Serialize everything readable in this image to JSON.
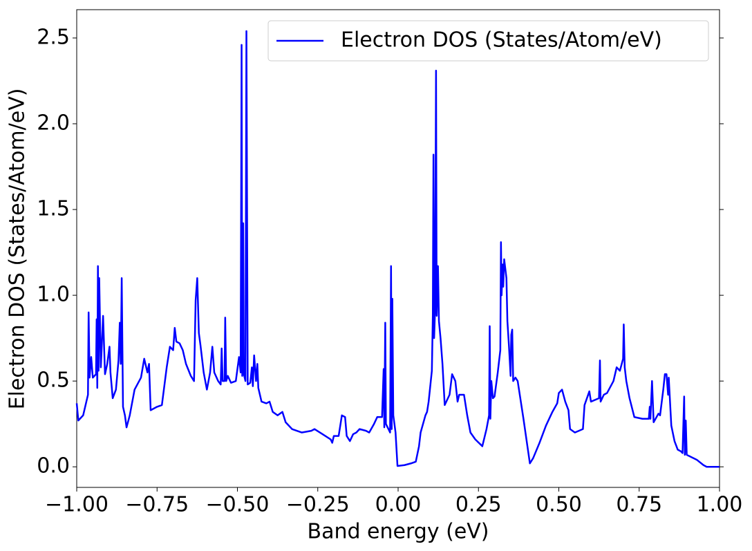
{
  "chart_data": {
    "type": "line",
    "xlabel": "Band energy (eV)",
    "ylabel": "Electron DOS (States/Atom/eV)",
    "legend": "upper right",
    "x": [
      -1.0,
      -0.995,
      -0.98,
      -0.965,
      -0.963,
      -0.96,
      -0.955,
      -0.95,
      -0.94,
      -0.938,
      -0.936,
      -0.934,
      -0.932,
      -0.93,
      -0.925,
      -0.918,
      -0.912,
      -0.905,
      -0.898,
      -0.895,
      -0.888,
      -0.878,
      -0.87,
      -0.866,
      -0.863,
      -0.86,
      -0.856,
      -0.85,
      -0.845,
      -0.835,
      -0.82,
      -0.8,
      -0.79,
      -0.78,
      -0.775,
      -0.77,
      -0.75,
      -0.735,
      -0.72,
      -0.71,
      -0.7,
      -0.695,
      -0.69,
      -0.68,
      -0.67,
      -0.66,
      -0.645,
      -0.635,
      -0.63,
      -0.625,
      -0.62,
      -0.615,
      -0.605,
      -0.595,
      -0.585,
      -0.578,
      -0.572,
      -0.56,
      -0.552,
      -0.549,
      -0.546,
      -0.54,
      -0.538,
      -0.535,
      -0.53,
      -0.52,
      -0.505,
      -0.495,
      -0.49,
      -0.487,
      -0.485,
      -0.482,
      -0.48,
      -0.475,
      -0.472,
      -0.468,
      -0.46,
      -0.455,
      -0.452,
      -0.448,
      -0.442,
      -0.438,
      -0.435,
      -0.425,
      -0.41,
      -0.4,
      -0.39,
      -0.375,
      -0.36,
      -0.35,
      -0.33,
      -0.3,
      -0.27,
      -0.26,
      -0.235,
      -0.21,
      -0.205,
      -0.2,
      -0.185,
      -0.175,
      -0.165,
      -0.16,
      -0.15,
      -0.14,
      -0.13,
      -0.12,
      -0.1,
      -0.09,
      -0.075,
      -0.065,
      -0.05,
      -0.045,
      -0.043,
      -0.04,
      -0.038,
      -0.03,
      -0.025,
      -0.022,
      -0.02,
      -0.018,
      -0.015,
      -0.008,
      -0.002,
      0.02,
      0.04,
      0.055,
      0.065,
      0.07,
      0.085,
      0.09,
      0.095,
      0.105,
      0.108,
      0.11,
      0.112,
      0.115,
      0.118,
      0.12,
      0.124,
      0.127,
      0.132,
      0.138,
      0.145,
      0.16,
      0.168,
      0.178,
      0.185,
      0.19,
      0.205,
      0.215,
      0.225,
      0.24,
      0.262,
      0.275,
      0.283,
      0.285,
      0.287,
      0.29,
      0.295,
      0.3,
      0.31,
      0.318,
      0.32,
      0.322,
      0.325,
      0.327,
      0.33,
      0.337,
      0.34,
      0.345,
      0.35,
      0.352,
      0.355,
      0.358,
      0.365,
      0.372,
      0.39,
      0.4,
      0.41,
      0.42,
      0.44,
      0.46,
      0.48,
      0.495,
      0.5,
      0.51,
      0.52,
      0.53,
      0.535,
      0.55,
      0.575,
      0.58,
      0.595,
      0.6,
      0.625,
      0.628,
      0.63,
      0.64,
      0.65,
      0.67,
      0.68,
      0.69,
      0.7,
      0.702,
      0.705,
      0.71,
      0.72,
      0.735,
      0.76,
      0.78,
      0.783,
      0.785,
      0.79,
      0.795,
      0.81,
      0.815,
      0.825,
      0.83,
      0.835,
      0.84,
      0.842,
      0.85,
      0.86,
      0.87,
      0.88,
      0.885,
      0.89,
      0.892,
      0.895,
      0.898,
      0.93,
      0.95,
      0.96,
      1.0
    ],
    "series": [
      {
        "name": "Electron DOS (States/Atom/eV)",
        "color": "#0000ff",
        "values": [
          0.37,
          0.27,
          0.3,
          0.42,
          0.9,
          0.52,
          0.64,
          0.52,
          0.54,
          0.86,
          0.46,
          1.17,
          0.56,
          1.1,
          0.58,
          0.88,
          0.54,
          0.6,
          0.7,
          0.55,
          0.4,
          0.45,
          0.62,
          0.84,
          0.6,
          1.1,
          0.35,
          0.3,
          0.23,
          0.3,
          0.45,
          0.52,
          0.63,
          0.55,
          0.6,
          0.33,
          0.35,
          0.36,
          0.58,
          0.7,
          0.68,
          0.81,
          0.73,
          0.72,
          0.68,
          0.6,
          0.53,
          0.5,
          0.97,
          1.1,
          0.78,
          0.71,
          0.55,
          0.45,
          0.55,
          0.7,
          0.55,
          0.5,
          0.48,
          0.69,
          0.5,
          0.5,
          0.87,
          0.5,
          0.53,
          0.49,
          0.5,
          0.64,
          0.55,
          2.46,
          0.53,
          1.42,
          0.54,
          0.5,
          2.54,
          0.48,
          0.49,
          0.58,
          0.47,
          0.65,
          0.5,
          0.6,
          0.46,
          0.38,
          0.37,
          0.38,
          0.32,
          0.3,
          0.32,
          0.26,
          0.22,
          0.2,
          0.21,
          0.22,
          0.19,
          0.16,
          0.14,
          0.18,
          0.18,
          0.3,
          0.29,
          0.18,
          0.15,
          0.19,
          0.2,
          0.22,
          0.21,
          0.2,
          0.25,
          0.29,
          0.29,
          0.57,
          0.23,
          0.84,
          0.25,
          0.22,
          0.2,
          1.17,
          0.22,
          0.98,
          0.3,
          0.2,
          0.005,
          0.01,
          0.02,
          0.03,
          0.12,
          0.2,
          0.3,
          0.32,
          0.38,
          0.56,
          0.88,
          1.82,
          0.75,
          0.92,
          2.31,
          0.88,
          1.17,
          0.85,
          0.75,
          0.6,
          0.36,
          0.42,
          0.54,
          0.5,
          0.38,
          0.42,
          0.42,
          0.3,
          0.2,
          0.16,
          0.12,
          0.22,
          0.3,
          0.82,
          0.28,
          0.5,
          0.4,
          0.41,
          0.55,
          0.68,
          1.31,
          1.0,
          1.18,
          1.05,
          1.21,
          1.1,
          0.85,
          0.7,
          0.53,
          0.77,
          0.8,
          0.5,
          0.52,
          0.5,
          0.28,
          0.15,
          0.02,
          0.05,
          0.14,
          0.24,
          0.32,
          0.37,
          0.43,
          0.45,
          0.38,
          0.33,
          0.22,
          0.2,
          0.22,
          0.36,
          0.44,
          0.38,
          0.4,
          0.62,
          0.38,
          0.42,
          0.43,
          0.5,
          0.58,
          0.56,
          0.63,
          0.83,
          0.58,
          0.5,
          0.4,
          0.29,
          0.28,
          0.28,
          0.35,
          0.28,
          0.5,
          0.26,
          0.31,
          0.3,
          0.45,
          0.54,
          0.54,
          0.42,
          0.52,
          0.24,
          0.15,
          0.1,
          0.09,
          0.08,
          0.41,
          0.07,
          0.27,
          0.07,
          0.04,
          0.01,
          0.0,
          0.0
        ]
      }
    ],
    "xlim": [
      -1.0,
      1.0
    ],
    "ylim": [
      -0.12,
      2.665
    ],
    "xticks": [
      {
        "value": -1.0,
        "label": "−1.00"
      },
      {
        "value": -0.75,
        "label": "−0.75"
      },
      {
        "value": -0.5,
        "label": "−0.50"
      },
      {
        "value": -0.25,
        "label": "−0.25"
      },
      {
        "value": 0,
        "label": "0.00"
      },
      {
        "value": 0.25,
        "label": "0.25"
      },
      {
        "value": 0.5,
        "label": "0.50"
      },
      {
        "value": 0.75,
        "label": "0.75"
      },
      {
        "value": 1.0,
        "label": "1.00"
      }
    ],
    "yticks": [
      {
        "value": 0,
        "label": "0.0"
      },
      0.5,
      {
        "value": 1.0,
        "label": "1.0"
      },
      1.5,
      {
        "value": 2.0,
        "label": "2.0"
      },
      2.5
    ]
  }
}
